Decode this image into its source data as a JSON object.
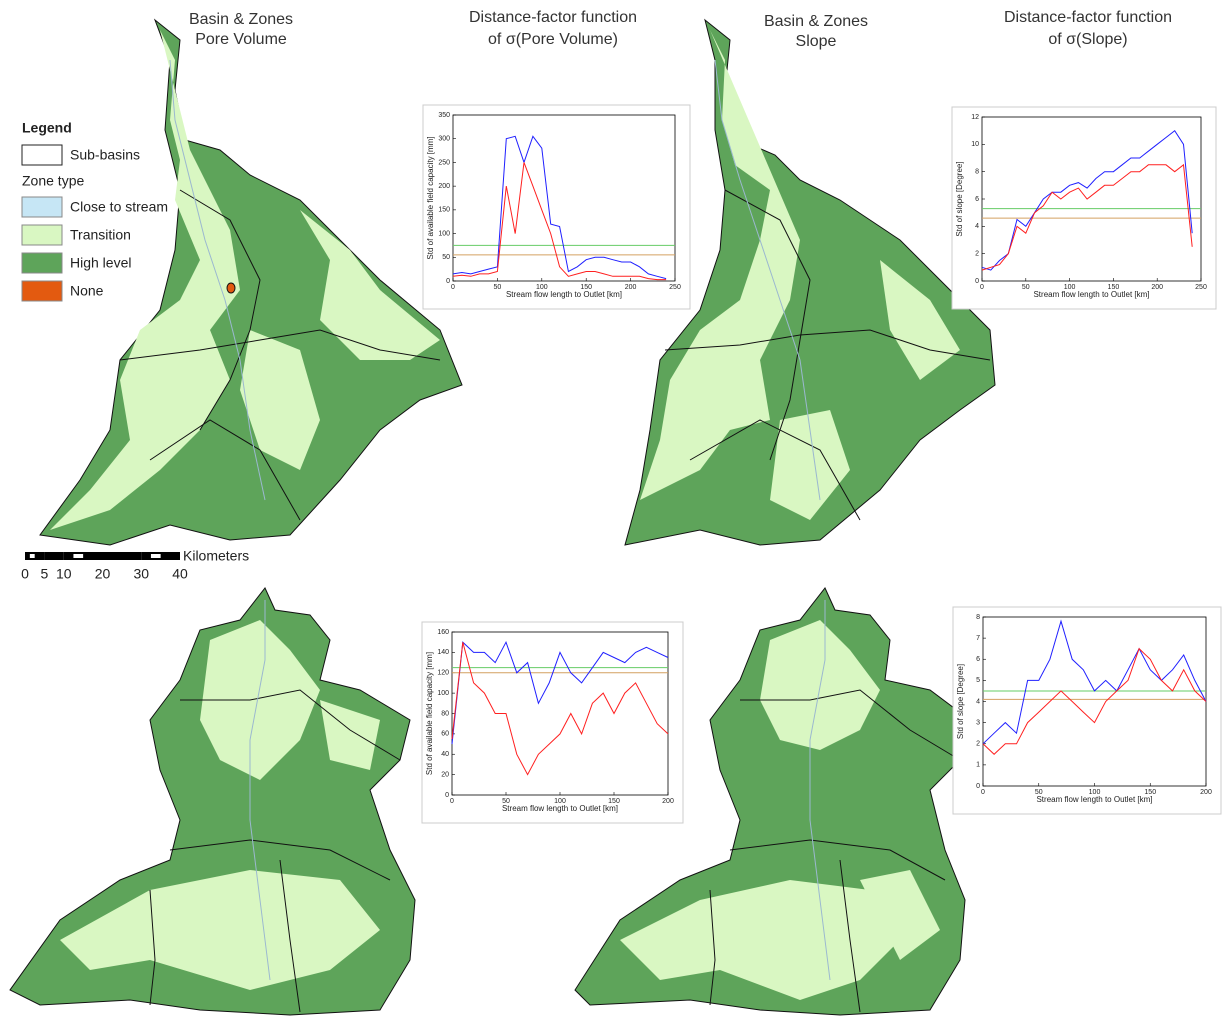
{
  "headers": [
    [
      "Basin & Zones",
      "Pore Volume"
    ],
    [
      "Distance-factor function",
      "of σ(Pore Volume)"
    ],
    [
      "Basin & Zones",
      "Slope"
    ],
    [
      "Distance-factor function",
      "of σ(Slope)"
    ]
  ],
  "legend": {
    "title": "Legend",
    "boundary": "Sub-basins",
    "group": "Zone type",
    "items": [
      {
        "label": "Close to stream",
        "color": "#c6e6f5"
      },
      {
        "label": "Transition",
        "color": "#d9f7c2"
      },
      {
        "label": "High level",
        "color": "#5ea45a"
      },
      {
        "label": "None",
        "color": "#e35a10"
      }
    ]
  },
  "scale": {
    "unit": "Kilometers",
    "ticks": [
      0,
      5,
      10,
      20,
      30,
      40
    ]
  },
  "chart_data": [
    {
      "type": "line",
      "xlabel": "Stream flow length to Outlet [km]",
      "ylabel": "Std of available field capacity [mm]",
      "x": [
        0,
        10,
        20,
        30,
        40,
        50,
        60,
        70,
        80,
        90,
        100,
        110,
        120,
        130,
        140,
        150,
        160,
        170,
        180,
        190,
        200,
        210,
        220,
        230,
        240
      ],
      "series": [
        {
          "color": "#2020ff",
          "values": [
            15,
            18,
            15,
            20,
            25,
            30,
            300,
            305,
            250,
            305,
            280,
            120,
            115,
            20,
            30,
            45,
            50,
            50,
            45,
            40,
            40,
            30,
            15,
            10,
            5
          ]
        },
        {
          "color": "#ff2020",
          "values": [
            10,
            12,
            10,
            15,
            15,
            20,
            200,
            100,
            250,
            200,
            150,
            100,
            30,
            10,
            15,
            20,
            20,
            15,
            10,
            10,
            10,
            10,
            5,
            3,
            3
          ]
        }
      ],
      "hlines": [
        {
          "value": 75,
          "color": "#66cc66"
        },
        {
          "value": 55,
          "color": "#d4a060"
        }
      ],
      "xlim": [
        0,
        250
      ],
      "xticks": [
        0,
        50,
        100,
        150,
        200,
        250
      ],
      "ylim": [
        0,
        350
      ],
      "yticks": [
        0,
        50,
        100,
        150,
        200,
        250,
        300,
        350
      ]
    },
    {
      "type": "line",
      "xlabel": "Stream flow length to Outlet [km]",
      "ylabel": "Std of slope [Degree]",
      "x": [
        0,
        10,
        20,
        30,
        40,
        50,
        60,
        70,
        80,
        90,
        100,
        110,
        120,
        130,
        140,
        150,
        160,
        170,
        180,
        190,
        200,
        210,
        220,
        230,
        240
      ],
      "series": [
        {
          "color": "#2020ff",
          "values": [
            1,
            0.8,
            1.5,
            2,
            4.5,
            4,
            5,
            6,
            6.5,
            6.5,
            7,
            7.2,
            6.8,
            7.5,
            8,
            8,
            8.5,
            9,
            9,
            9.5,
            10,
            10.5,
            11,
            10,
            3.5
          ]
        },
        {
          "color": "#ff2020",
          "values": [
            0.8,
            1,
            1.2,
            2,
            4,
            3.5,
            5,
            5.5,
            6.5,
            6,
            6.5,
            6.8,
            6,
            6.5,
            7,
            7,
            7.5,
            8,
            8,
            8.5,
            8.5,
            8.5,
            8,
            8.5,
            2.5
          ]
        }
      ],
      "hlines": [
        {
          "value": 5.3,
          "color": "#66cc66"
        },
        {
          "value": 4.6,
          "color": "#d4a060"
        }
      ],
      "xlim": [
        0,
        250
      ],
      "xticks": [
        0,
        50,
        100,
        150,
        200,
        250
      ],
      "ylim": [
        0,
        12
      ],
      "yticks": [
        0,
        2,
        4,
        6,
        8,
        10,
        12
      ]
    },
    {
      "type": "line",
      "xlabel": "Stream flow length to Outlet [km]",
      "ylabel": "Std of available field capacity [mm]",
      "x": [
        0,
        10,
        20,
        30,
        40,
        50,
        60,
        70,
        80,
        90,
        100,
        110,
        120,
        130,
        140,
        150,
        160,
        170,
        180,
        190,
        200
      ],
      "series": [
        {
          "color": "#2020ff",
          "values": [
            50,
            150,
            140,
            140,
            130,
            150,
            120,
            130,
            90,
            110,
            140,
            120,
            110,
            125,
            140,
            135,
            130,
            140,
            145,
            140,
            135
          ]
        },
        {
          "color": "#ff2020",
          "values": [
            55,
            150,
            110,
            100,
            80,
            80,
            40,
            20,
            40,
            50,
            60,
            80,
            60,
            90,
            100,
            80,
            100,
            110,
            90,
            70,
            60
          ]
        }
      ],
      "hlines": [
        {
          "value": 125,
          "color": "#66cc66"
        },
        {
          "value": 120,
          "color": "#d4a060"
        }
      ],
      "xlim": [
        0,
        200
      ],
      "xticks": [
        0,
        50,
        100,
        150,
        200
      ],
      "ylim": [
        0,
        160
      ],
      "yticks": [
        0,
        20,
        40,
        60,
        80,
        100,
        120,
        140,
        160
      ]
    },
    {
      "type": "line",
      "xlabel": "Stream flow length to Outlet [km]",
      "ylabel": "Std of slope [Degree]",
      "x": [
        0,
        10,
        20,
        30,
        40,
        50,
        60,
        70,
        80,
        90,
        100,
        110,
        120,
        130,
        140,
        150,
        160,
        170,
        180,
        190,
        200
      ],
      "series": [
        {
          "color": "#2020ff",
          "values": [
            2,
            2.5,
            3,
            2.5,
            5,
            5,
            6,
            7.8,
            6,
            5.5,
            4.5,
            5,
            4.5,
            5.5,
            6.5,
            5.5,
            5,
            5.5,
            6.2,
            5,
            4
          ]
        },
        {
          "color": "#ff2020",
          "values": [
            2,
            1.5,
            2,
            2,
            3,
            3.5,
            4,
            4.5,
            4,
            3.5,
            3,
            4,
            4.5,
            5,
            6.5,
            6,
            5,
            4.5,
            5.5,
            4.5,
            4
          ]
        }
      ],
      "hlines": [
        {
          "value": 4.5,
          "color": "#66cc66"
        },
        {
          "value": 4.1,
          "color": "#d4a060"
        }
      ],
      "xlim": [
        0,
        200
      ],
      "xticks": [
        0,
        50,
        100,
        150,
        200
      ],
      "ylim": [
        0,
        8
      ],
      "yticks": [
        0,
        1,
        2,
        3,
        4,
        5,
        6,
        7,
        8
      ]
    }
  ]
}
